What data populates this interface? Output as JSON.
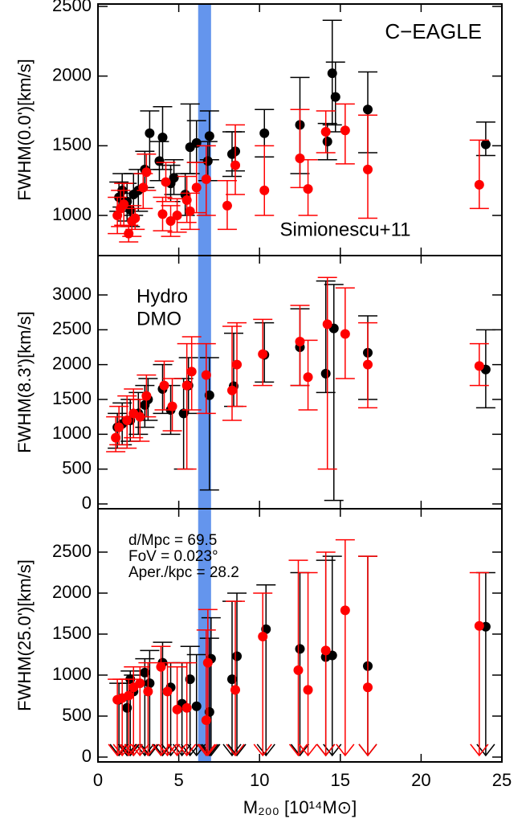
{
  "chart_data": [
    {
      "type": "scatter",
      "ylabel": "FWHM(0.0')[km/s]",
      "annotation": "C−EAGLE",
      "band": {
        "x": [
          6.2,
          7.0
        ],
        "color": "#6495ed",
        "label": "Simionescu+11"
      },
      "xlim": [
        0,
        25
      ],
      "xticks": [
        0,
        5,
        10,
        15,
        20,
        25
      ],
      "ylim": [
        712,
        2517
      ],
      "yticks": [
        1000,
        1500,
        2000,
        2500
      ],
      "series": [
        {
          "name": "Hydro",
          "color": "#000000",
          "x": [
            1.3,
            1.5,
            1.8,
            2.0,
            2.2,
            2.5,
            2.9,
            3.2,
            3.8,
            4.0,
            4.5,
            4.7,
            5.4,
            5.7,
            6.1,
            6.8,
            6.9,
            8.3,
            8.5,
            10.3,
            12.5,
            14.2,
            14.5,
            14.7,
            16.7,
            24.0
          ],
          "values": [
            1130,
            1180,
            1100,
            1040,
            1150,
            1180,
            1330,
            1590,
            1390,
            1560,
            1230,
            1270,
            1150,
            1490,
            1520,
            1390,
            1570,
            1440,
            1460,
            1590,
            1650,
            1530,
            2020,
            1850,
            1760,
            1510
          ],
          "lo": [
            1030,
            1060,
            960,
            920,
            1000,
            1030,
            1200,
            1330,
            1250,
            1330,
            1100,
            1150,
            1000,
            1300,
            1380,
            1250,
            1400,
            1280,
            1320,
            1420,
            1300,
            1400,
            1650,
            1600,
            1450,
            1430
          ],
          "hi": [
            1240,
            1300,
            1230,
            1160,
            1300,
            1330,
            1460,
            1750,
            1530,
            1780,
            1360,
            1400,
            1300,
            1800,
            1680,
            1530,
            1750,
            1600,
            1600,
            1760,
            1990,
            1660,
            2400,
            2100,
            2030,
            1670
          ]
        },
        {
          "name": "DMO",
          "color": "#ff0000",
          "x": [
            1.2,
            1.4,
            1.6,
            1.9,
            2.1,
            2.3,
            2.8,
            3.0,
            4.0,
            4.2,
            4.5,
            4.9,
            5.5,
            5.7,
            6.1,
            6.7,
            8.0,
            8.5,
            10.3,
            12.5,
            13.0,
            14.1,
            15.3,
            16.7,
            23.6
          ],
          "values": [
            1000,
            1050,
            1080,
            870,
            960,
            980,
            1200,
            1310,
            1010,
            1240,
            960,
            1000,
            1110,
            1030,
            1200,
            1260,
            1070,
            1360,
            1180,
            1410,
            1190,
            1600,
            1610,
            1330,
            1220
          ],
          "lo": [
            870,
            920,
            930,
            810,
            850,
            900,
            1050,
            1180,
            890,
            1100,
            850,
            880,
            950,
            900,
            1020,
            1000,
            900,
            1150,
            1000,
            1200,
            1000,
            1450,
            1370,
            980,
            1050
          ],
          "hi": [
            1130,
            1180,
            1230,
            930,
            1070,
            1050,
            1300,
            1440,
            1130,
            1380,
            1070,
            1120,
            1280,
            1160,
            1380,
            1500,
            1250,
            1650,
            1500,
            1760,
            1400,
            1750,
            1800,
            1720,
            1540
          ]
        }
      ]
    },
    {
      "type": "scatter",
      "ylabel": "FWHM(8.3')[km/s]",
      "band": {
        "x": [
          6.2,
          7.0
        ],
        "color": "#6495ed"
      },
      "legend": "upper left",
      "xlim": [
        0,
        25
      ],
      "xticks": [
        0,
        5,
        10,
        15,
        20,
        25
      ],
      "ylim": [
        -69,
        3565
      ],
      "yticks": [
        0,
        500,
        1000,
        1500,
        2000,
        2500,
        3000
      ],
      "series": [
        {
          "name": "Hydro",
          "color": "#000000",
          "x": [
            1.2,
            1.5,
            2.0,
            2.5,
            2.9,
            3.1,
            4.0,
            4.5,
            5.3,
            5.6,
            6.9,
            8.4,
            10.3,
            12.5,
            14.1,
            14.6,
            16.7,
            24.0
          ],
          "values": [
            1100,
            1150,
            1200,
            1300,
            1420,
            1500,
            1650,
            1350,
            1300,
            1700,
            1560,
            1690,
            2140,
            2250,
            1870,
            2520,
            2170,
            1930
          ],
          "lo": [
            800,
            850,
            900,
            1000,
            1100,
            1200,
            1300,
            1000,
            500,
            1300,
            200,
            1400,
            1750,
            1700,
            1600,
            50,
            1500,
            1380
          ],
          "hi": [
            1300,
            1450,
            1500,
            1600,
            1700,
            1800,
            2000,
            1700,
            1800,
            2100,
            2100,
            2450,
            2600,
            2800,
            3200,
            3150,
            2700,
            2500
          ]
        },
        {
          "name": "DMO",
          "color": "#ff0000",
          "x": [
            1.1,
            1.3,
            1.8,
            2.2,
            2.6,
            3.0,
            4.1,
            4.6,
            5.5,
            5.8,
            6.7,
            8.3,
            8.6,
            10.2,
            12.5,
            13.0,
            14.2,
            15.3,
            16.7,
            23.6
          ],
          "values": [
            950,
            1100,
            1200,
            1300,
            1250,
            1550,
            1700,
            1400,
            1700,
            1900,
            1850,
            1630,
            2000,
            2150,
            2330,
            1820,
            2580,
            2440,
            2000,
            1980
          ],
          "lo": [
            750,
            850,
            800,
            950,
            900,
            1250,
            1350,
            1050,
            500,
            1350,
            1300,
            1200,
            1400,
            1700,
            1700,
            1350,
            500,
            1800,
            1380,
            1700
          ],
          "hi": [
            1250,
            1400,
            1550,
            1650,
            1500,
            1850,
            2050,
            1800,
            2300,
            2400,
            2300,
            2550,
            2600,
            2650,
            2850,
            2350,
            3250,
            3100,
            2600,
            2300
          ]
        }
      ]
    },
    {
      "type": "scatter",
      "ylabel": "FWHM(25.0')[km/s]",
      "xlabel": "M₂₀₀ [10¹⁴M⊙]",
      "notes": [
        "d/Mpc  =  69.5",
        "FoV = 0.023°",
        "Aper./kpc =  28.2"
      ],
      "band": {
        "x": [
          6.2,
          7.0
        ],
        "color": "#6495ed"
      },
      "upper_limits": true,
      "xlim": [
        0,
        25
      ],
      "xticks": [
        0,
        5,
        10,
        15,
        20,
        25
      ],
      "ylim": [
        -59,
        3029
      ],
      "yticks": [
        0,
        500,
        1000,
        1500,
        2000,
        2500
      ],
      "series": [
        {
          "name": "Hydro",
          "color": "#000000",
          "x": [
            1.3,
            1.8,
            2.0,
            2.2,
            2.9,
            3.2,
            4.0,
            4.5,
            5.2,
            5.7,
            6.1,
            6.9,
            7.0,
            8.3,
            8.6,
            10.4,
            12.5,
            14.1,
            14.5,
            16.7,
            24.0
          ],
          "values": [
            700,
            600,
            950,
            800,
            1030,
            900,
            1150,
            850,
            650,
            950,
            620,
            550,
            1200,
            950,
            1230,
            1560,
            1320,
            1220,
            1240,
            1110,
            1590
          ],
          "hi": [
            900,
            900,
            1050,
            1000,
            1200,
            1300,
            1400,
            1150,
            1150,
            1350,
            1250,
            1450,
            1700,
            1900,
            2000,
            2100,
            2250,
            2400,
            2450,
            2450,
            2250
          ]
        },
        {
          "name": "DMO",
          "color": "#ff0000",
          "x": [
            1.2,
            1.5,
            1.9,
            2.2,
            2.6,
            3.1,
            3.9,
            4.3,
            4.9,
            5.5,
            6.7,
            6.8,
            8.5,
            10.2,
            12.4,
            13.0,
            14.1,
            15.3,
            16.7,
            23.6
          ],
          "values": [
            700,
            720,
            750,
            850,
            900,
            800,
            1100,
            800,
            580,
            600,
            450,
            1150,
            820,
            1470,
            1060,
            820,
            1300,
            1790,
            850,
            1600
          ],
          "hi": [
            950,
            950,
            950,
            1100,
            1100,
            1150,
            1350,
            1150,
            1100,
            1150,
            1550,
            1800,
            1900,
            2000,
            2400,
            2250,
            2500,
            2650,
            2450,
            2250
          ]
        }
      ]
    }
  ]
}
